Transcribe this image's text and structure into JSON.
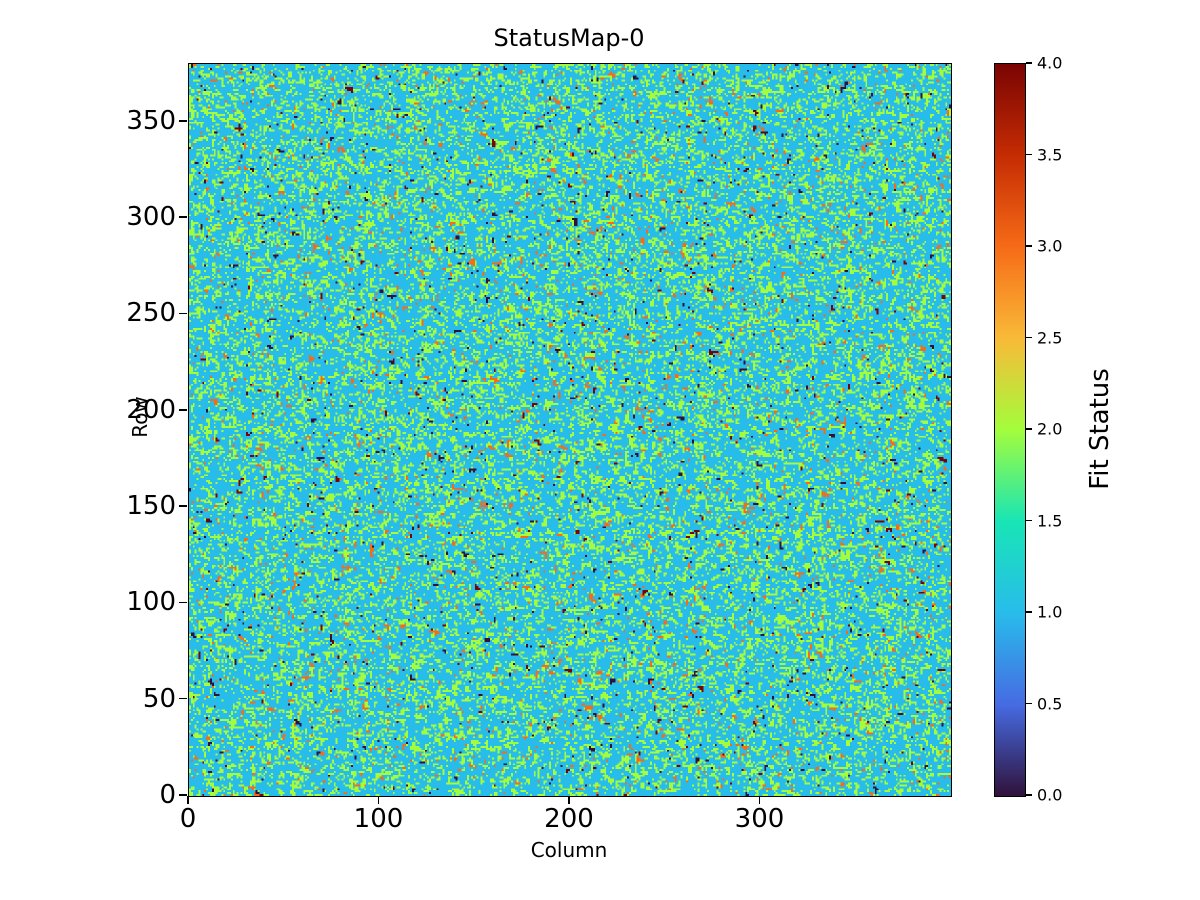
{
  "figure": {
    "background_color": "#ffffff",
    "text_color": "#000000"
  },
  "chart_data": {
    "type": "heatmap",
    "title": "StatusMap-0",
    "xlabel": "Column",
    "ylabel": "Row",
    "x_range": [
      0,
      400
    ],
    "y_range": [
      0,
      380
    ],
    "x_ticks": [
      0,
      100,
      200,
      300
    ],
    "y_ticks": [
      0,
      50,
      100,
      150,
      200,
      250,
      300,
      350
    ],
    "grid": false,
    "legend": "none",
    "colormap": "turbo",
    "colormap_stops": [
      "#30123b",
      "#466be3",
      "#28bceb",
      "#18e5b5",
      "#a3fd3c",
      "#f9ba38",
      "#f66b17",
      "#c52c03",
      "#7a0403"
    ],
    "colorbar": {
      "label": "Fit Status",
      "vmin": 0.0,
      "vmax": 4.0,
      "tick_labels": [
        "0.0",
        "0.5",
        "1.0",
        "1.5",
        "2.0",
        "2.5",
        "3.0",
        "3.5",
        "4.0"
      ]
    },
    "cells": {
      "cols": 400,
      "rows": 380,
      "description": "Dense per-pixel random fit-status map; integer values 0-4, dominated by status 1 (cyan) with speckles of status 2 (yellow-green), sparse status 3 (orange), status 0 (dark purple) and rare status 4 (dark red).",
      "value_distribution": [
        {
          "value": 0,
          "color": "#30123b",
          "fraction": 0.01
        },
        {
          "value": 1,
          "color": "#28bceb",
          "fraction": 0.705
        },
        {
          "value": 2,
          "color": "#a3fd3c",
          "fraction": 0.258
        },
        {
          "value": 3,
          "color": "#f66b17",
          "fraction": 0.022
        },
        {
          "value": 4,
          "color": "#7a0403",
          "fraction": 0.005
        }
      ]
    }
  }
}
